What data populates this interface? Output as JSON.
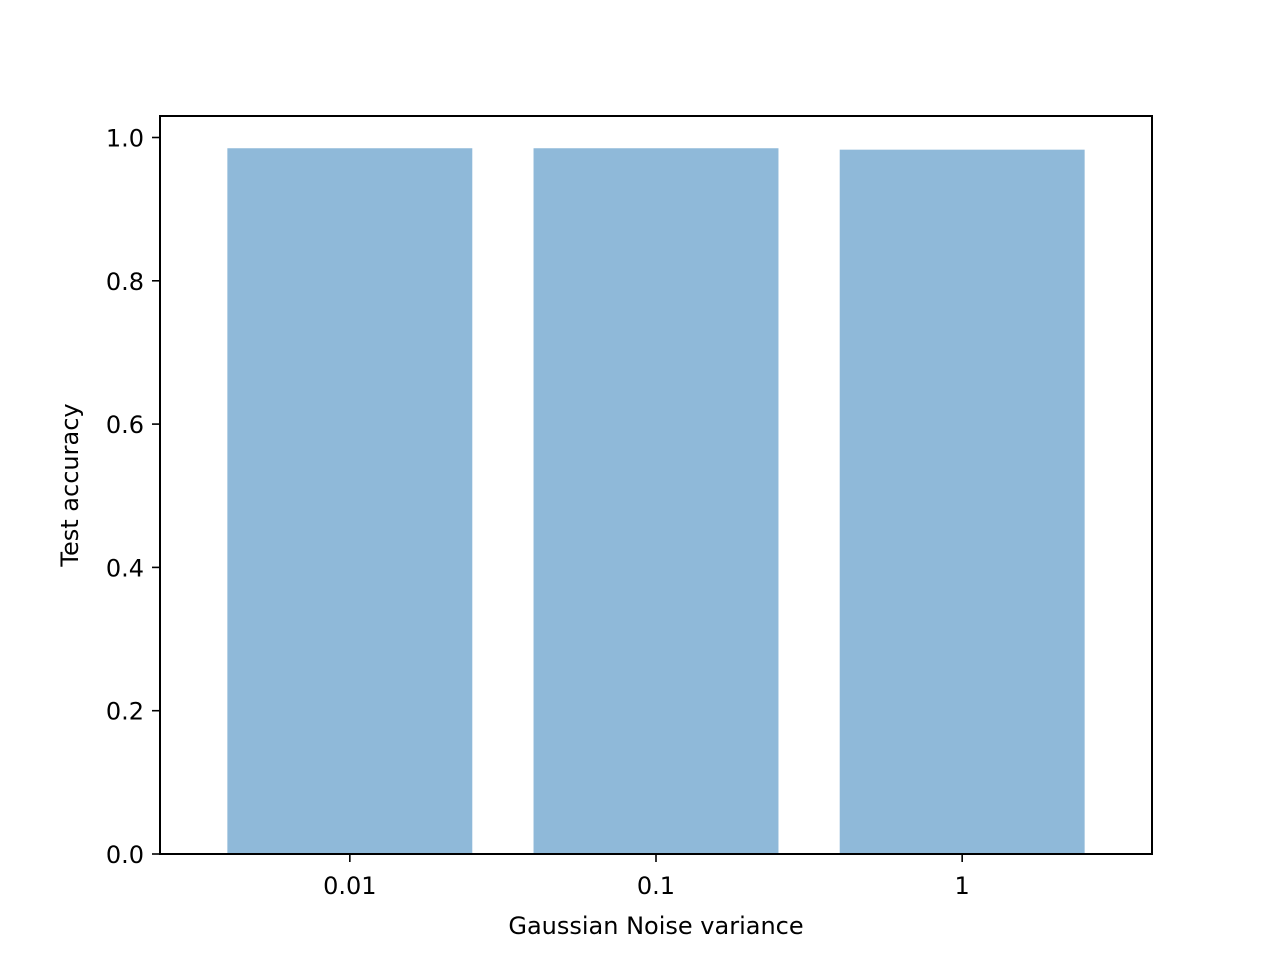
{
  "chart_data": {
    "type": "bar",
    "title": "",
    "xlabel": "Gaussian Noise variance",
    "ylabel": "Test accuracy",
    "categories": [
      "0.01",
      "0.1",
      "1"
    ],
    "values": [
      0.985,
      0.985,
      0.983
    ],
    "ylim": [
      0,
      1.03
    ],
    "yticks": [
      0.0,
      0.2,
      0.4,
      0.6,
      0.8,
      1.0
    ],
    "ytick_labels": [
      "0.0",
      "0.2",
      "0.4",
      "0.6",
      "0.8",
      "1.0"
    ],
    "bar_color": "#8fb9d9",
    "grid": false,
    "legend": "none"
  }
}
